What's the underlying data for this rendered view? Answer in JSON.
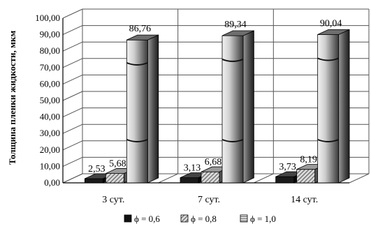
{
  "chart_data": {
    "type": "bar",
    "title": "",
    "xlabel": "",
    "ylabel": "Толщина пленки жидкости, мкм",
    "ylim": [
      0,
      100
    ],
    "yticks": [
      "0,00",
      "10,00",
      "20,00",
      "30,00",
      "40,00",
      "50,00",
      "60,00",
      "70,00",
      "80,00",
      "90,00",
      "100,00"
    ],
    "categories": [
      "3 сут.",
      "7 сут.",
      "14 сут."
    ],
    "series": [
      {
        "name": "ϕ = 0,6",
        "values": [
          2.53,
          3.13,
          3.73
        ],
        "labels": [
          "2,53",
          "3,13",
          "3,73"
        ]
      },
      {
        "name": "ϕ = 0,8",
        "values": [
          5.68,
          6.68,
          8.19
        ],
        "labels": [
          "5,68",
          "6,68",
          "8,19"
        ]
      },
      {
        "name": "ϕ = 1,0",
        "values": [
          86.76,
          89.34,
          90.04
        ],
        "labels": [
          "86,76",
          "89,34",
          "90,04"
        ]
      }
    ],
    "grid": true,
    "legend": "bottom",
    "style": "3d-bar",
    "colors": {
      "s1": "#111111",
      "s2": "#777777",
      "s3": "#bdbdbd",
      "grid": "#555555",
      "axis": "#000000"
    }
  }
}
